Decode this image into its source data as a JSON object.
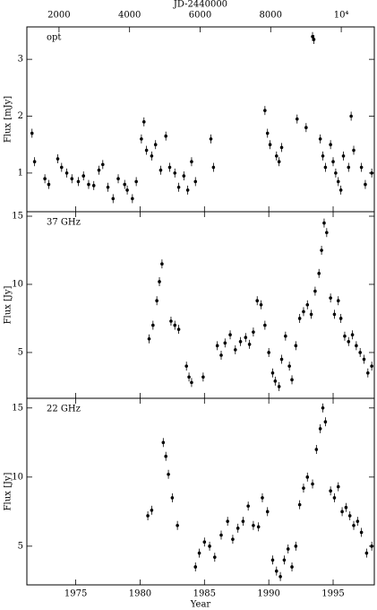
{
  "chart_data": [
    {
      "type": "scatter",
      "label": "opt",
      "ylabel": "Flux [mJy]",
      "color": "#000000",
      "x2label": "JD-2440000",
      "x2lim": [
        1089,
        10937
      ],
      "x2ticks": [
        2000,
        4000,
        6000,
        8000,
        {
          "value": 10000,
          "label": "10⁴"
        }
      ],
      "xlim": [
        1971.2,
        1998.2
      ],
      "xticks": [
        1975,
        1980,
        1985,
        1990,
        1995
      ],
      "ylim": [
        0.32,
        3.57
      ],
      "yticks": [
        1,
        2,
        3
      ],
      "x": [
        1971.6,
        1971.8,
        1972.6,
        1972.9,
        1973.6,
        1973.9,
        1974.3,
        1974.7,
        1975.2,
        1975.6,
        1976.0,
        1976.4,
        1976.8,
        1977.1,
        1977.5,
        1977.9,
        1978.3,
        1978.8,
        1979.0,
        1979.4,
        1979.7,
        1980.1,
        1980.3,
        1980.5,
        1980.9,
        1981.2,
        1981.6,
        1982.0,
        1982.3,
        1982.7,
        1983.0,
        1983.4,
        1983.7,
        1984.0,
        1984.3,
        1985.5,
        1985.7,
        1989.7,
        1989.9,
        1990.1,
        1990.6,
        1990.8,
        1991.0,
        1992.2,
        1992.9,
        1993.4,
        1993.5,
        1994.0,
        1994.2,
        1994.4,
        1994.8,
        1995.0,
        1995.2,
        1995.4,
        1995.6,
        1995.8,
        1996.2,
        1996.4,
        1996.6,
        1997.2,
        1997.5,
        1998.0
      ],
      "values": [
        1.7,
        1.2,
        0.9,
        0.8,
        1.25,
        1.1,
        1.0,
        0.9,
        0.85,
        0.95,
        0.8,
        0.78,
        1.05,
        1.15,
        0.75,
        0.55,
        0.9,
        0.8,
        0.7,
        0.55,
        0.85,
        1.6,
        1.9,
        1.4,
        1.3,
        1.5,
        1.05,
        1.65,
        1.1,
        1.0,
        0.75,
        0.95,
        0.7,
        1.2,
        0.85,
        1.6,
        1.1,
        2.1,
        1.7,
        1.5,
        1.3,
        1.2,
        1.45,
        1.95,
        1.8,
        3.4,
        3.35,
        1.6,
        1.3,
        1.1,
        1.5,
        1.2,
        1.0,
        0.85,
        0.7,
        1.3,
        1.1,
        2.0,
        1.4,
        1.1,
        0.8,
        1.0
      ]
    },
    {
      "type": "scatter",
      "label": "37 GHz",
      "ylabel": "Flux [Jy]",
      "color": "#000000",
      "xlim": [
        1971.2,
        1998.2
      ],
      "xticks": [
        1975,
        1980,
        1985,
        1990,
        1995
      ],
      "ylim": [
        1.64,
        15.33
      ],
      "yticks": [
        5,
        10,
        15
      ],
      "x": [
        1980.7,
        1981.0,
        1981.3,
        1981.5,
        1981.7,
        1982.4,
        1982.7,
        1983.0,
        1983.6,
        1983.8,
        1984.0,
        1984.9,
        1986.0,
        1986.3,
        1986.6,
        1987.0,
        1987.4,
        1987.8,
        1988.2,
        1988.5,
        1988.8,
        1989.1,
        1989.4,
        1989.7,
        1990.0,
        1990.3,
        1990.5,
        1990.8,
        1991.0,
        1991.3,
        1991.6,
        1991.8,
        1992.1,
        1992.4,
        1992.7,
        1993.0,
        1993.3,
        1993.6,
        1993.9,
        1994.1,
        1994.3,
        1994.5,
        1994.8,
        1995.1,
        1995.4,
        1995.6,
        1995.9,
        1996.2,
        1996.5,
        1996.8,
        1997.1,
        1997.4,
        1997.7,
        1998.0
      ],
      "values": [
        6.0,
        7.0,
        8.8,
        10.2,
        11.5,
        7.3,
        7.0,
        6.7,
        4.0,
        3.2,
        2.8,
        3.2,
        5.5,
        4.8,
        5.7,
        6.3,
        5.2,
        5.8,
        6.1,
        5.6,
        6.5,
        8.8,
        8.5,
        7.0,
        5.0,
        3.5,
        2.9,
        2.5,
        4.5,
        6.2,
        4.0,
        3.0,
        5.5,
        7.5,
        8.0,
        8.5,
        7.8,
        9.5,
        10.8,
        12.5,
        14.5,
        13.8,
        9.0,
        7.8,
        8.8,
        7.5,
        6.2,
        5.8,
        6.3,
        5.5,
        5.0,
        4.5,
        3.5,
        4.0
      ]
    },
    {
      "type": "scatter",
      "label": "22 GHz",
      "ylabel": "Flux [Jy]",
      "xlabel": "Year",
      "color": "#000000",
      "xlim": [
        1971.2,
        1998.2
      ],
      "xticks": [
        1975,
        1980,
        1985,
        1990,
        1995
      ],
      "ylim": [
        2.2,
        15.7
      ],
      "yticks": [
        5,
        10,
        15
      ],
      "x": [
        1980.6,
        1980.9,
        1981.8,
        1982.0,
        1982.2,
        1982.5,
        1982.9,
        1984.3,
        1984.6,
        1985.0,
        1985.4,
        1985.8,
        1986.3,
        1986.8,
        1987.2,
        1987.6,
        1988.0,
        1988.4,
        1988.8,
        1989.2,
        1989.5,
        1989.9,
        1990.3,
        1990.6,
        1990.9,
        1991.2,
        1991.5,
        1991.8,
        1992.1,
        1992.4,
        1992.7,
        1993.0,
        1993.4,
        1993.7,
        1994.0,
        1994.2,
        1994.4,
        1994.8,
        1995.1,
        1995.4,
        1995.7,
        1996.0,
        1996.3,
        1996.6,
        1996.9,
        1997.2,
        1997.6,
        1998.0
      ],
      "values": [
        7.2,
        7.6,
        12.5,
        11.5,
        10.2,
        8.5,
        6.5,
        3.5,
        4.5,
        5.3,
        5.0,
        4.2,
        5.8,
        6.8,
        5.5,
        6.3,
        6.8,
        7.9,
        6.5,
        6.4,
        8.5,
        7.5,
        4.0,
        3.2,
        2.8,
        4.0,
        4.8,
        3.5,
        5.0,
        8.0,
        9.2,
        10.0,
        9.5,
        12.0,
        13.5,
        15.0,
        14.0,
        9.0,
        8.5,
        9.3,
        7.5,
        7.8,
        7.2,
        6.5,
        6.8,
        6.0,
        4.5,
        5.0
      ]
    }
  ]
}
